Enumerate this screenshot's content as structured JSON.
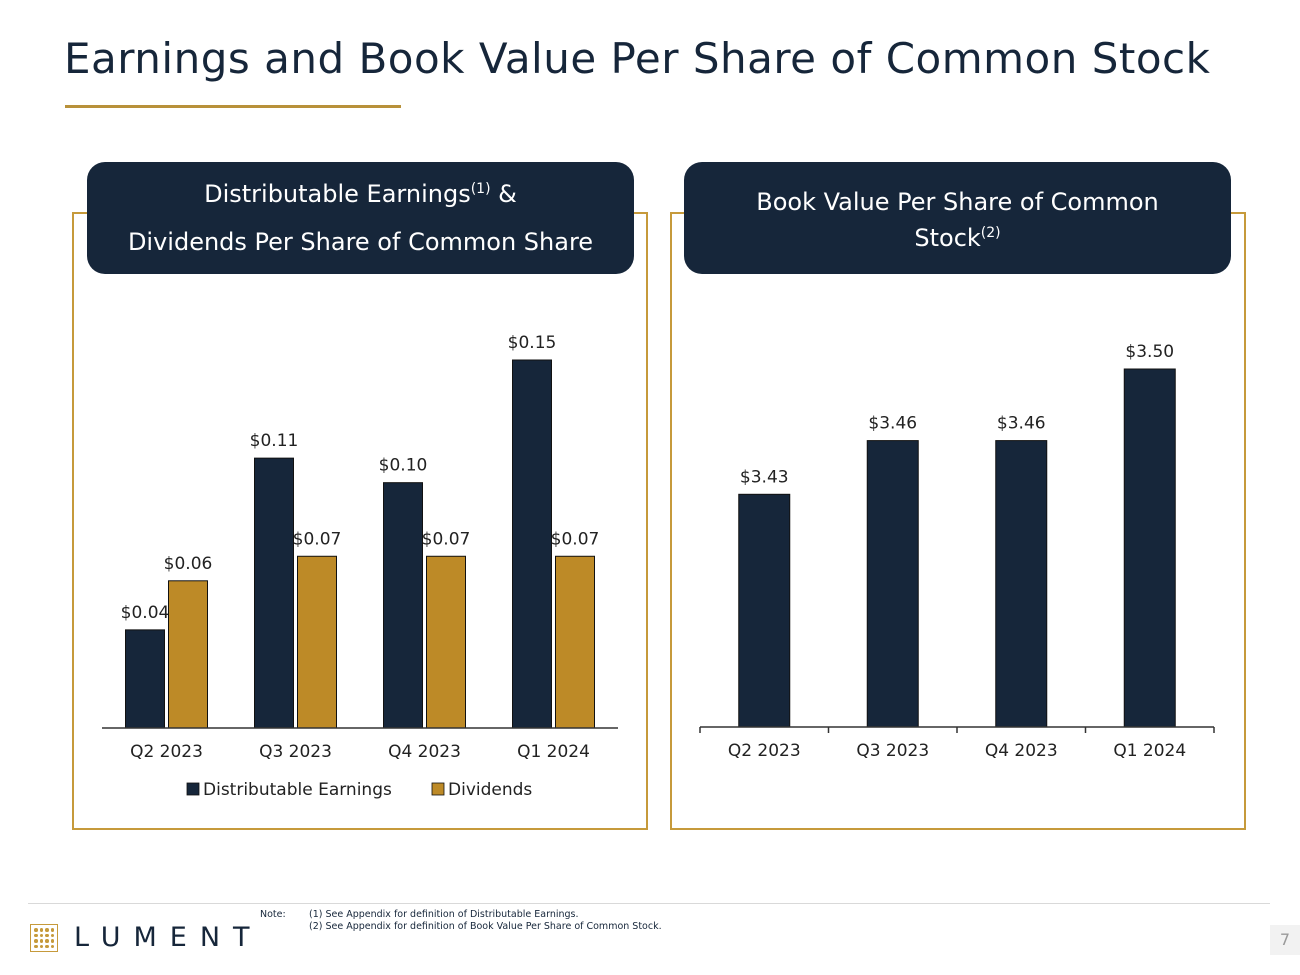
{
  "title": "Earnings and Book Value Per Share of Common Stock",
  "colors": {
    "navy": "#16263a",
    "gold": "#bd8a27",
    "frame": "#c69a3b",
    "rule": "#b8913a",
    "logo": "#c69a3b"
  },
  "left_panel": {
    "header_line1": "Distributable Earnings",
    "header_sup1": "(1)",
    "header_amp": " &",
    "header_line2": "Dividends Per Share of Common Share"
  },
  "right_panel": {
    "header_line1": "Book Value Per Share of Common",
    "header_line2": "Stock",
    "header_sup2": "(2)"
  },
  "chart_data": [
    {
      "type": "bar",
      "title": "Distributable Earnings(1) & Dividends Per Share of Common Share",
      "categories": [
        "Q2 2023",
        "Q3 2023",
        "Q4 2023",
        "Q1 2024"
      ],
      "series": [
        {
          "name": "Distributable Earnings",
          "values": [
            0.04,
            0.11,
            0.1,
            0.15
          ],
          "labels": [
            "$0.04",
            "$0.11",
            "$0.10",
            "$0.15"
          ],
          "color": "#16263a"
        },
        {
          "name": "Dividends",
          "values": [
            0.06,
            0.07,
            0.07,
            0.07
          ],
          "labels": [
            "$0.06",
            "$0.07",
            "$0.07",
            "$0.07"
          ],
          "color": "#bd8a27"
        }
      ],
      "ylim": [
        0,
        0.16
      ],
      "grid": false,
      "legend": "bottom"
    },
    {
      "type": "bar",
      "title": "Book Value Per Share of Common Stock(2)",
      "categories": [
        "Q2 2023",
        "Q3 2023",
        "Q4 2023",
        "Q1 2024"
      ],
      "series": [
        {
          "name": "Book Value Per Share",
          "values": [
            3.43,
            3.46,
            3.46,
            3.5
          ],
          "labels": [
            "$3.43",
            "$3.46",
            "$3.46",
            "$3.50"
          ],
          "color": "#16263a"
        }
      ],
      "ylim": [
        3.3,
        3.52
      ],
      "grid": false,
      "legend": "none"
    }
  ],
  "footer": {
    "logo": "LUMENT",
    "note_label": "Note:",
    "notes": [
      "(1) See Appendix for definition of Distributable Earnings.",
      "(2) See Appendix for definition of Book Value Per Share of Common Stock."
    ],
    "page_number": "7"
  }
}
